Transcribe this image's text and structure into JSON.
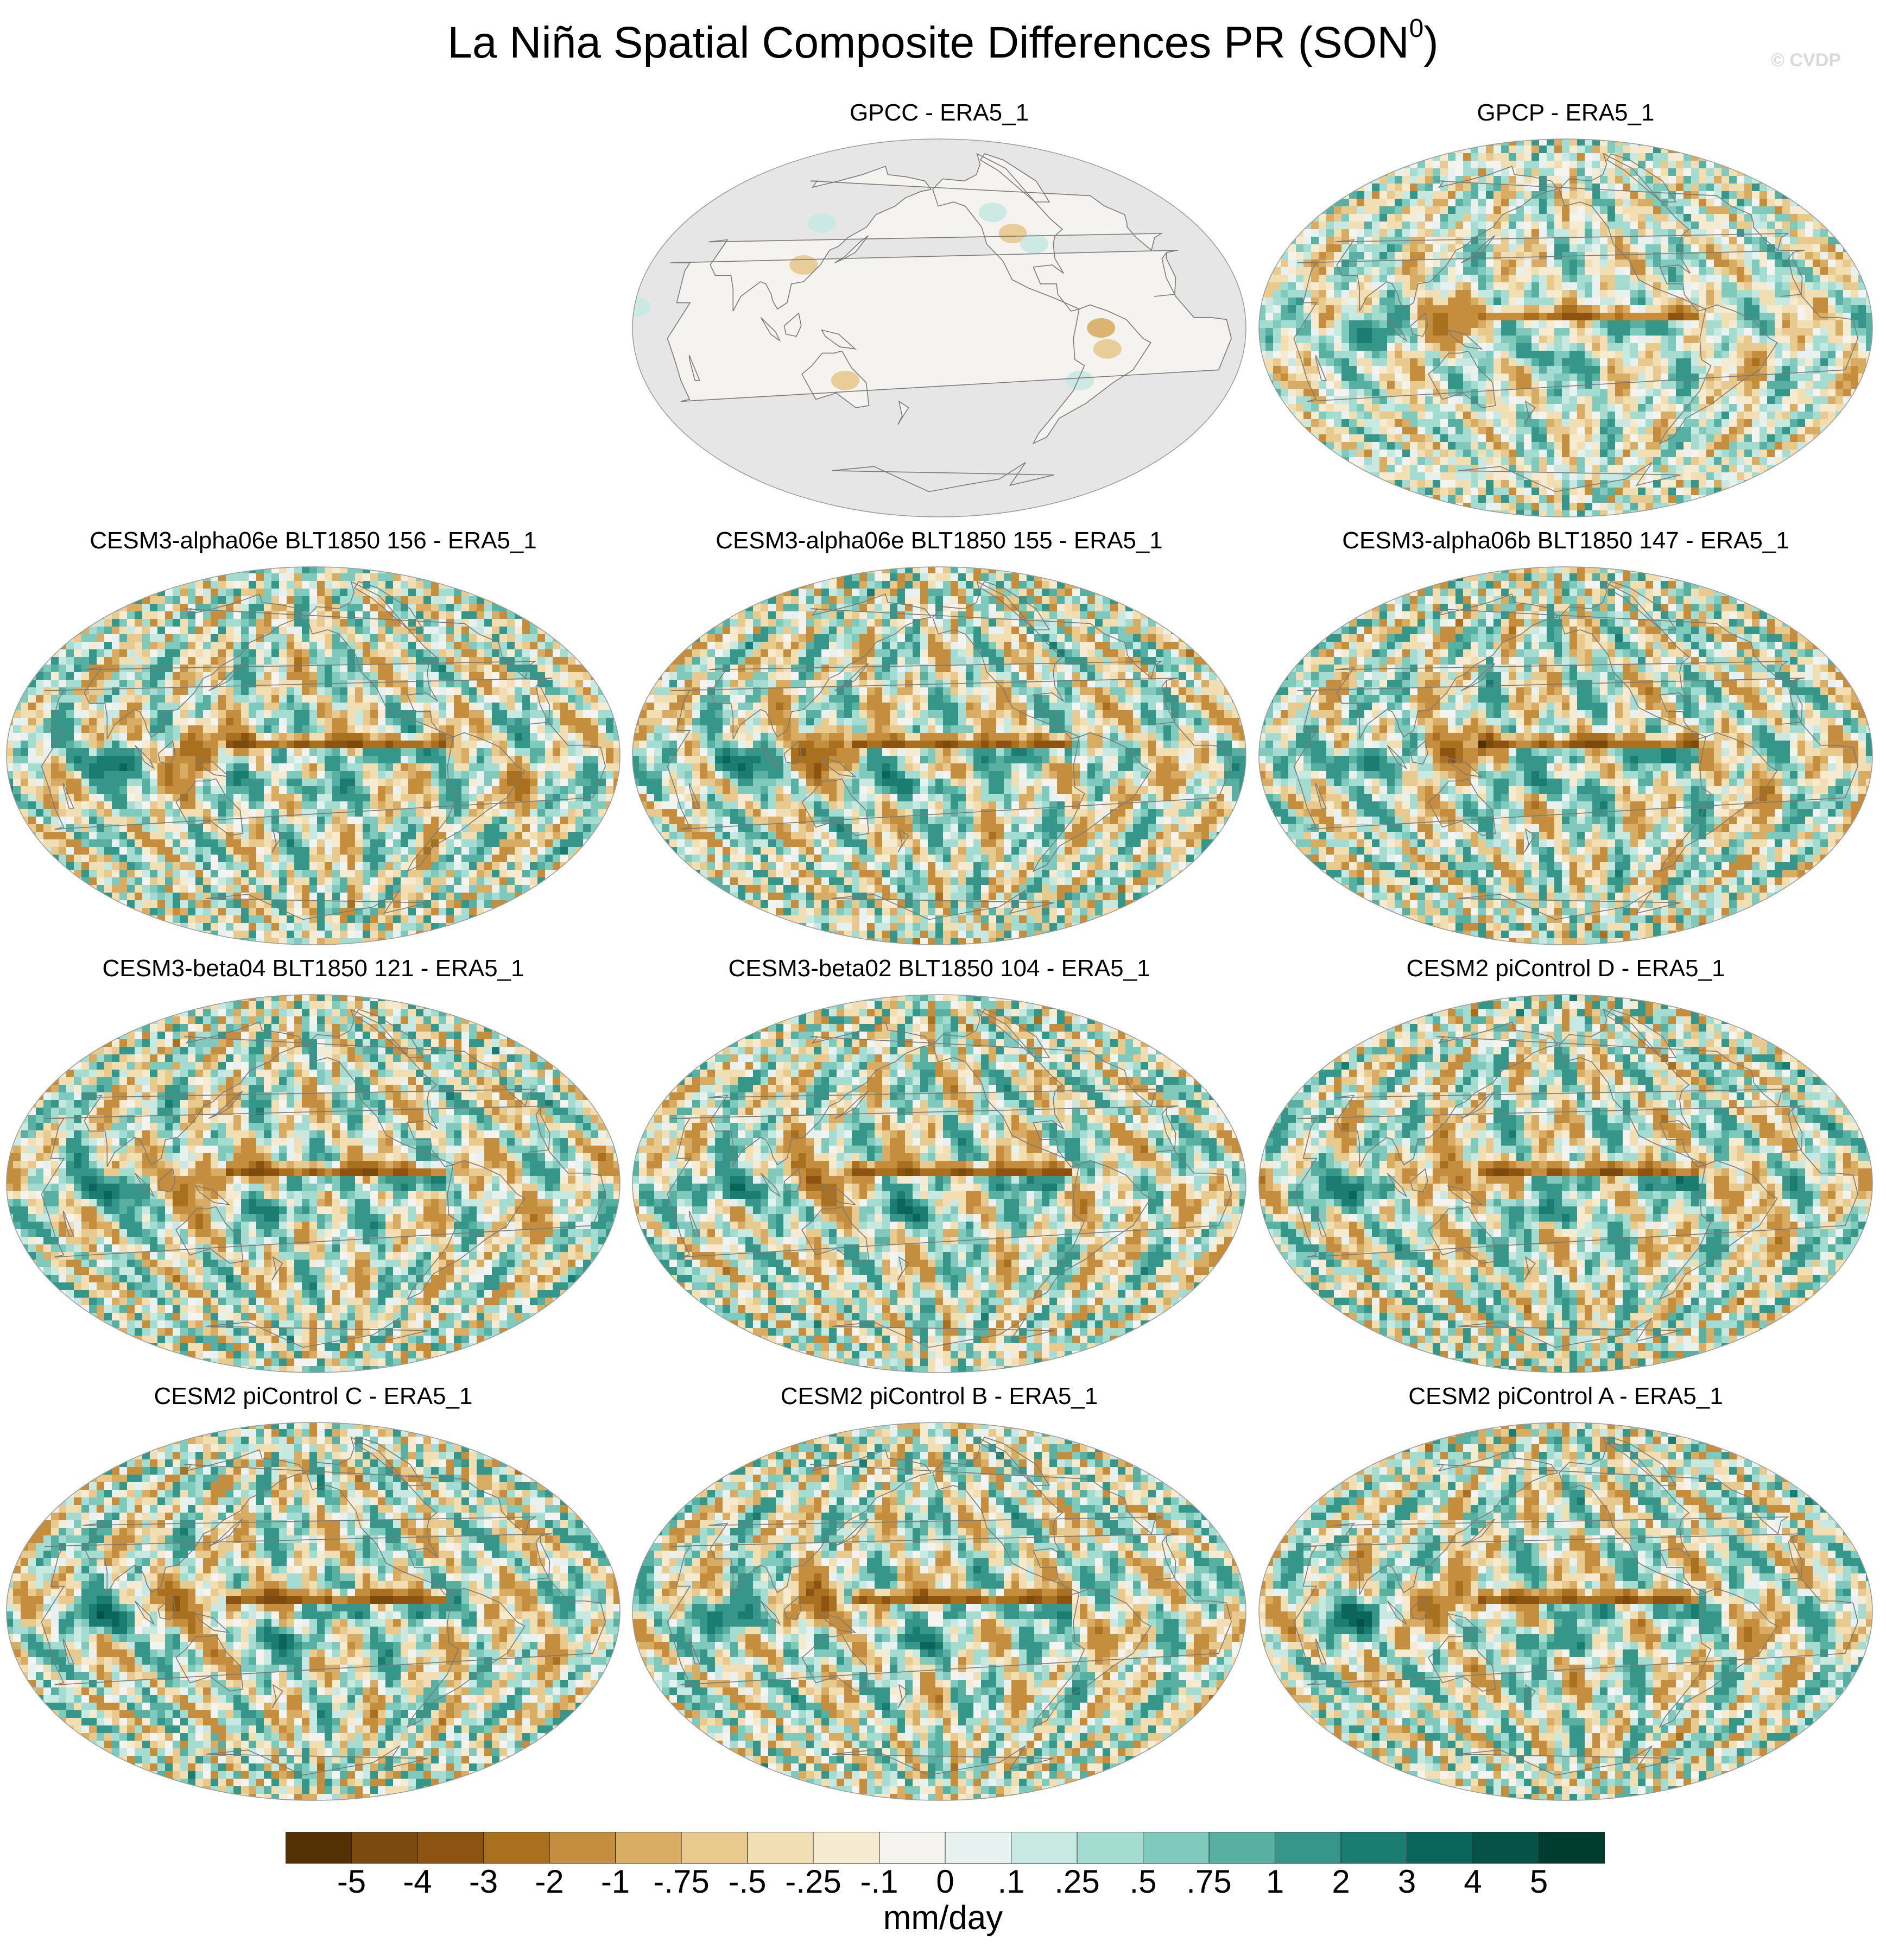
{
  "figure": {
    "title_main": "La Niña Spatial Composite Differences PR (SON",
    "title_sup": "0",
    "title_end": ")",
    "watermark": "© CVDP"
  },
  "colors": {
    "ocean_missing": "#e6e6e6",
    "coast": "#7a7a7a",
    "palette": [
      "#543005",
      "#7a4a0e",
      "#8c5410",
      "#a8701f",
      "#c58d3e",
      "#d8ad63",
      "#e8c98e",
      "#f1deb2",
      "#f6ead0",
      "#f5f3ef",
      "#e7f2f0",
      "#c8e8e2",
      "#a5dcd2",
      "#7fcabd",
      "#58b0a2",
      "#36968a",
      "#1b7c72",
      "#0a655a",
      "#045248",
      "#003c30"
    ]
  },
  "chart_data": {
    "type": "map_panels",
    "projection": "Winkel tripel / Robinson-like global, centered on Pacific",
    "panels": [
      {
        "title": "GPCC - ERA5_1",
        "ocean_masked": true
      },
      {
        "title": "GPCP - ERA5_1",
        "ocean_masked": false
      },
      {
        "title": "CESM3-alpha06e BLT1850 156 - ERA5_1",
        "ocean_masked": false
      },
      {
        "title": "CESM3-alpha06e BLT1850 155 - ERA5_1",
        "ocean_masked": false
      },
      {
        "title": "CESM3-alpha06b BLT1850 147 - ERA5_1",
        "ocean_masked": false
      },
      {
        "title": "CESM3-beta04 BLT1850 121 - ERA5_1",
        "ocean_masked": false
      },
      {
        "title": "CESM3-beta02 BLT1850 104 - ERA5_1",
        "ocean_masked": false
      },
      {
        "title": "CESM2 piControl D - ERA5_1",
        "ocean_masked": false
      },
      {
        "title": "CESM2 piControl C - ERA5_1",
        "ocean_masked": false
      },
      {
        "title": "CESM2 piControl B - ERA5_1",
        "ocean_masked": false
      },
      {
        "title": "CESM2 piControl A - ERA5_1",
        "ocean_masked": false
      }
    ],
    "colorbar": {
      "units": "mm/day",
      "tick_labels": [
        "-5",
        "-4",
        "-3",
        "-2",
        "-1",
        "-.75",
        "-.5",
        "-.25",
        "-.1",
        "0",
        ".1",
        ".25",
        ".5",
        ".75",
        "1",
        "2",
        "3",
        "4",
        "5"
      ],
      "levels": [
        -5,
        -4,
        -3,
        -2,
        -1,
        -0.75,
        -0.5,
        -0.25,
        -0.1,
        0,
        0.1,
        0.25,
        0.5,
        0.75,
        1,
        2,
        3,
        4,
        5
      ]
    }
  }
}
